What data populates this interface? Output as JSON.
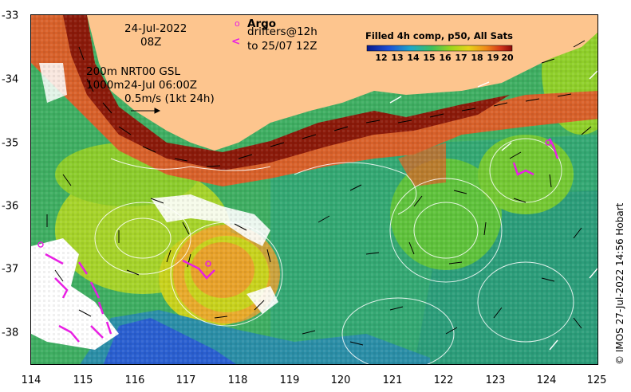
{
  "map": {
    "timestamp_line1": "24-Jul-2022",
    "timestamp_line2": "08Z",
    "current_info_line1": "200m  NRT00 GSL",
    "current_info_line2": "1000m24-Jul 06:00Z",
    "scale_label": "0.5m/s (1kt 24h)",
    "argo_label": "Argo",
    "drifters_line1": "drifters@12h",
    "drifters_line2": "to 25/07 12Z",
    "credit": "© IMOS 27-Jul-2022 14:56 Hobart",
    "colorbar": {
      "title": "Filled 4h comp, p50, All Sats",
      "ticks": [
        "12",
        "13",
        "14",
        "15",
        "16",
        "17",
        "18",
        "19",
        "20"
      ]
    },
    "axes": {
      "x_ticks": [
        "114",
        "115",
        "116",
        "117",
        "118",
        "119",
        "120",
        "121",
        "122",
        "123",
        "124",
        "125"
      ],
      "y_ticks": [
        "-33",
        "-34",
        "-35",
        "-36",
        "-37",
        "-38"
      ]
    },
    "colors": {
      "land": "#fdc58e",
      "warm_current": "#8b1a0a",
      "drifter": "#e81fe3"
    }
  }
}
